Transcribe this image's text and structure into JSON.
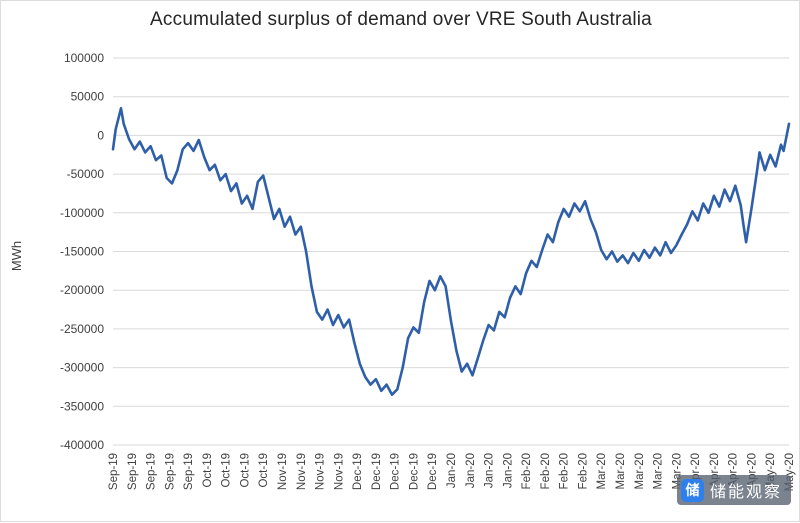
{
  "chart_data": {
    "type": "line",
    "title": "Accumulated surplus of demand over VRE South Australia",
    "ylabel": "MWh",
    "ylim": [
      -400000,
      100000
    ],
    "yticks": [
      100000,
      50000,
      0,
      -50000,
      -100000,
      -150000,
      -200000,
      -250000,
      -300000,
      -350000,
      -400000
    ],
    "x_tick_labels": [
      "Sep-19",
      "Sep-19",
      "Sep-19",
      "Sep-19",
      "Sep-19",
      "Oct-19",
      "Oct-19",
      "Oct-19",
      "Oct-19",
      "Nov-19",
      "Nov-19",
      "Nov-19",
      "Nov-19",
      "Dec-19",
      "Dec-19",
      "Dec-19",
      "Dec-19",
      "Dec-19",
      "Jan-20",
      "Jan-20",
      "Jan-20",
      "Jan-20",
      "Feb-20",
      "Feb-20",
      "Feb-20",
      "Feb-20",
      "Mar-20",
      "Mar-20",
      "Mar-20",
      "Mar-20",
      "Mar-20",
      "Apr-20",
      "Apr-20",
      "Apr-20",
      "Apr-20",
      "May-20",
      "May-20"
    ],
    "x_tick_interval_days": 7,
    "x_range_days": [
      0,
      252
    ],
    "grid": "horizontal",
    "legend": "none",
    "line_color": "#2E5FA8",
    "gridline_color": "#D9D9D9",
    "axis_text_color": "#404040",
    "series": [
      {
        "name": "Accumulated surplus of demand over VRE",
        "points": [
          [
            0,
            -18000
          ],
          [
            1,
            8000
          ],
          [
            3,
            35000
          ],
          [
            4,
            15000
          ],
          [
            6,
            -5000
          ],
          [
            8,
            -18000
          ],
          [
            10,
            -8000
          ],
          [
            12,
            -22000
          ],
          [
            14,
            -14000
          ],
          [
            16,
            -32000
          ],
          [
            18,
            -26000
          ],
          [
            20,
            -55000
          ],
          [
            22,
            -62000
          ],
          [
            24,
            -45000
          ],
          [
            26,
            -18000
          ],
          [
            28,
            -10000
          ],
          [
            30,
            -20000
          ],
          [
            32,
            -6000
          ],
          [
            34,
            -28000
          ],
          [
            36,
            -45000
          ],
          [
            38,
            -38000
          ],
          [
            40,
            -58000
          ],
          [
            42,
            -50000
          ],
          [
            44,
            -72000
          ],
          [
            46,
            -62000
          ],
          [
            48,
            -88000
          ],
          [
            50,
            -78000
          ],
          [
            52,
            -95000
          ],
          [
            54,
            -60000
          ],
          [
            56,
            -52000
          ],
          [
            58,
            -80000
          ],
          [
            60,
            -108000
          ],
          [
            62,
            -95000
          ],
          [
            64,
            -118000
          ],
          [
            66,
            -105000
          ],
          [
            68,
            -128000
          ],
          [
            70,
            -118000
          ],
          [
            72,
            -150000
          ],
          [
            74,
            -195000
          ],
          [
            76,
            -228000
          ],
          [
            78,
            -238000
          ],
          [
            80,
            -225000
          ],
          [
            82,
            -245000
          ],
          [
            84,
            -232000
          ],
          [
            86,
            -248000
          ],
          [
            88,
            -238000
          ],
          [
            90,
            -268000
          ],
          [
            92,
            -295000
          ],
          [
            94,
            -312000
          ],
          [
            96,
            -322000
          ],
          [
            98,
            -315000
          ],
          [
            100,
            -330000
          ],
          [
            102,
            -322000
          ],
          [
            104,
            -335000
          ],
          [
            106,
            -328000
          ],
          [
            108,
            -300000
          ],
          [
            110,
            -262000
          ],
          [
            112,
            -248000
          ],
          [
            114,
            -255000
          ],
          [
            116,
            -215000
          ],
          [
            118,
            -188000
          ],
          [
            120,
            -200000
          ],
          [
            122,
            -182000
          ],
          [
            124,
            -195000
          ],
          [
            126,
            -240000
          ],
          [
            128,
            -278000
          ],
          [
            130,
            -305000
          ],
          [
            132,
            -295000
          ],
          [
            134,
            -310000
          ],
          [
            136,
            -288000
          ],
          [
            138,
            -265000
          ],
          [
            140,
            -245000
          ],
          [
            142,
            -252000
          ],
          [
            144,
            -228000
          ],
          [
            146,
            -235000
          ],
          [
            148,
            -210000
          ],
          [
            150,
            -195000
          ],
          [
            152,
            -205000
          ],
          [
            154,
            -178000
          ],
          [
            156,
            -162000
          ],
          [
            158,
            -170000
          ],
          [
            160,
            -148000
          ],
          [
            162,
            -128000
          ],
          [
            164,
            -138000
          ],
          [
            166,
            -112000
          ],
          [
            168,
            -95000
          ],
          [
            170,
            -105000
          ],
          [
            172,
            -88000
          ],
          [
            174,
            -98000
          ],
          [
            176,
            -85000
          ],
          [
            178,
            -108000
          ],
          [
            180,
            -125000
          ],
          [
            182,
            -148000
          ],
          [
            184,
            -160000
          ],
          [
            186,
            -150000
          ],
          [
            188,
            -163000
          ],
          [
            190,
            -155000
          ],
          [
            192,
            -165000
          ],
          [
            194,
            -152000
          ],
          [
            196,
            -162000
          ],
          [
            198,
            -148000
          ],
          [
            200,
            -158000
          ],
          [
            202,
            -145000
          ],
          [
            204,
            -155000
          ],
          [
            206,
            -138000
          ],
          [
            208,
            -152000
          ],
          [
            210,
            -142000
          ],
          [
            212,
            -128000
          ],
          [
            214,
            -115000
          ],
          [
            216,
            -98000
          ],
          [
            218,
            -110000
          ],
          [
            220,
            -88000
          ],
          [
            222,
            -100000
          ],
          [
            224,
            -78000
          ],
          [
            226,
            -92000
          ],
          [
            228,
            -70000
          ],
          [
            230,
            -85000
          ],
          [
            232,
            -65000
          ],
          [
            234,
            -90000
          ],
          [
            235,
            -115000
          ],
          [
            236,
            -138000
          ],
          [
            238,
            -95000
          ],
          [
            240,
            -48000
          ],
          [
            241,
            -22000
          ],
          [
            243,
            -45000
          ],
          [
            245,
            -25000
          ],
          [
            247,
            -40000
          ],
          [
            249,
            -12000
          ],
          [
            250,
            -20000
          ],
          [
            252,
            15000
          ]
        ]
      }
    ]
  },
  "watermark": {
    "text": "储能观察",
    "logo_char": "储",
    "logo_color": "#2F80ED"
  }
}
